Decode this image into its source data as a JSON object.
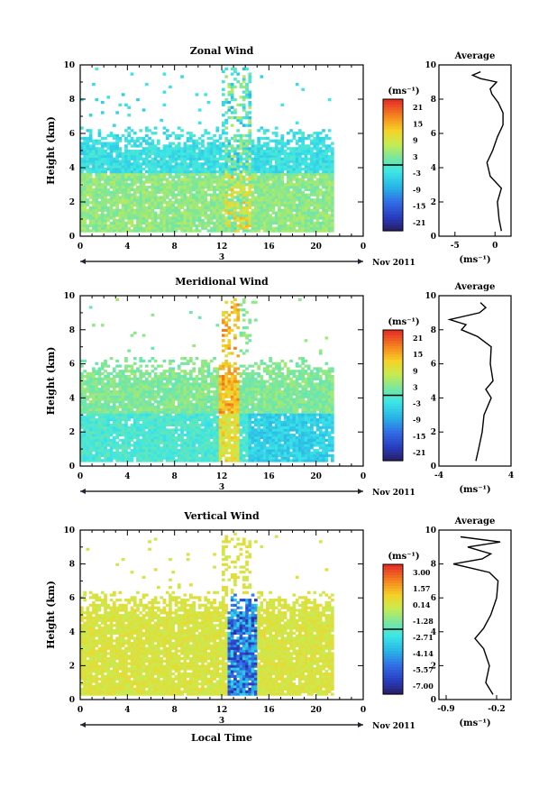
{
  "chart_data": [
    {
      "type": "heatmap",
      "title": "Zonal Wind",
      "ylabel": "Height (km)",
      "xlabel": "",
      "xlim": [
        0,
        24
      ],
      "ylim": [
        0,
        10
      ],
      "xticks": [
        "0",
        "4",
        "8",
        "12",
        "16",
        "20",
        "0"
      ],
      "yticks": [
        "0",
        "2",
        "4",
        "6",
        "8",
        "10"
      ],
      "date_label": "Nov 2011",
      "day_label": "3",
      "colorbar": {
        "unit": "(ms⁻¹)",
        "ticks": [
          "21",
          "15",
          "9",
          "3",
          "-3",
          "-9",
          "-15",
          "-21"
        ],
        "range": [
          -24,
          24
        ]
      },
      "data_extent": {
        "x": [
          0,
          21.5
        ],
        "y": [
          0.3,
          6.5
        ]
      },
      "average_profile": {
        "title": "Average",
        "xlabel": "(ms⁻¹)",
        "xticks": [
          "-5",
          "0"
        ],
        "xlim": [
          -7,
          2
        ],
        "heights": [
          0.3,
          1,
          2,
          2.8,
          3.5,
          4.3,
          5,
          5.8,
          6.5,
          7.2,
          7.8,
          8.3,
          8.6,
          9,
          9.2,
          9.4,
          9.6
        ],
        "values": [
          0.8,
          0.5,
          0.3,
          0.8,
          -0.6,
          -1.0,
          -0.3,
          0.3,
          1.0,
          1.0,
          0.4,
          -0.4,
          -0.6,
          0.2,
          -1.8,
          -2.8,
          -1.8
        ]
      }
    },
    {
      "type": "heatmap",
      "title": "Meridional Wind",
      "ylabel": "Height (km)",
      "xlabel": "",
      "xlim": [
        0,
        24
      ],
      "ylim": [
        0,
        10
      ],
      "xticks": [
        "0",
        "4",
        "8",
        "12",
        "16",
        "20",
        "0"
      ],
      "yticks": [
        "0",
        "2",
        "4",
        "6",
        "8",
        "10"
      ],
      "date_label": "Nov 2011",
      "day_label": "3",
      "colorbar": {
        "unit": "(ms⁻¹)",
        "ticks": [
          "21",
          "15",
          "9",
          "3",
          "-3",
          "-9",
          "-15",
          "-21"
        ],
        "range": [
          -24,
          24
        ]
      },
      "data_extent": {
        "x": [
          0,
          21.5
        ],
        "y": [
          0.3,
          6.5
        ]
      },
      "average_profile": {
        "title": "Average",
        "xlabel": "(ms⁻¹)",
        "xticks": [
          "-4",
          "4"
        ],
        "xlim": [
          -4,
          4
        ],
        "heights": [
          0.3,
          1,
          2,
          3,
          4,
          4.5,
          5,
          6,
          7,
          7.6,
          8,
          8.3,
          8.6,
          9,
          9.3,
          9.6
        ],
        "values": [
          0.1,
          0.4,
          0.8,
          1.0,
          1.8,
          1.2,
          2.0,
          1.7,
          1.8,
          0.3,
          -1.5,
          -1.0,
          -2.8,
          0.5,
          1.2,
          0.6
        ]
      }
    },
    {
      "type": "heatmap",
      "title": "Vertical Wind",
      "ylabel": "Height (km)",
      "xlabel": "Local Time",
      "xlim": [
        0,
        24
      ],
      "ylim": [
        0,
        10
      ],
      "xticks": [
        "0",
        "4",
        "8",
        "12",
        "16",
        "20",
        "0"
      ],
      "yticks": [
        "0",
        "2",
        "4",
        "6",
        "8",
        "10"
      ],
      "date_label": "Nov 2011",
      "day_label": "3",
      "colorbar": {
        "unit": "(ms⁻¹)",
        "ticks": [
          "3.00",
          "1.57",
          "0.14",
          "-1.28",
          "-2.71",
          "-4.14",
          "-5.57",
          "-7.00"
        ],
        "range": [
          -7.7,
          3.7
        ]
      },
      "data_extent": {
        "x": [
          0,
          21.5
        ],
        "y": [
          0.3,
          6.5
        ]
      },
      "average_profile": {
        "title": "Average",
        "xlabel": "(ms⁻¹)",
        "xticks": [
          "-0.9",
          "-0.2"
        ],
        "xlim": [
          -1.0,
          0.0
        ],
        "heights": [
          0.3,
          1,
          2,
          3,
          3.6,
          4.2,
          5,
          6,
          7,
          7.5,
          8,
          8.3,
          8.6,
          9,
          9.3,
          9.6
        ],
        "values": [
          -0.25,
          -0.35,
          -0.3,
          -0.38,
          -0.5,
          -0.38,
          -0.28,
          -0.2,
          -0.18,
          -0.3,
          -0.8,
          -0.4,
          -0.28,
          -0.6,
          -0.15,
          -0.7
        ]
      }
    }
  ]
}
